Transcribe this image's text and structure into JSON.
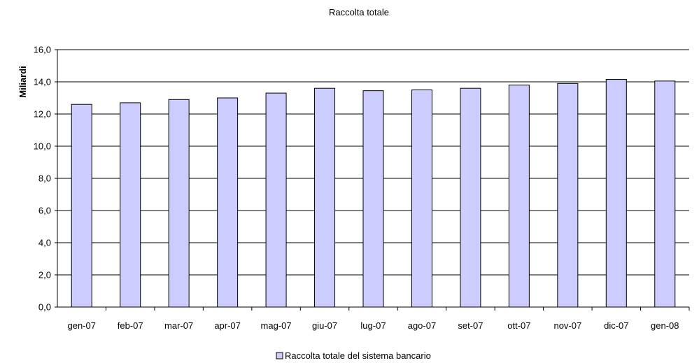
{
  "chart_data": {
    "type": "bar",
    "title": "Raccolta totale",
    "xlabel": "",
    "ylabel": "Miliardi",
    "categories": [
      "gen-07",
      "feb-07",
      "mar-07",
      "apr-07",
      "mag-07",
      "giu-07",
      "lug-07",
      "ago-07",
      "set-07",
      "ott-07",
      "nov-07",
      "dic-07",
      "gen-08"
    ],
    "series": [
      {
        "name": "Raccolta totale del sistema bancario",
        "values": [
          12.6,
          12.7,
          12.9,
          13.0,
          13.3,
          13.6,
          13.45,
          13.5,
          13.6,
          13.8,
          13.9,
          14.15,
          14.05
        ],
        "color": "#ccccff"
      }
    ],
    "ylim": [
      0,
      16
    ],
    "yticks": [
      "0,0",
      "2,0",
      "4,0",
      "6,0",
      "8,0",
      "10,0",
      "12,0",
      "14,0",
      "16,0"
    ],
    "grid": true,
    "legend_position": "bottom"
  }
}
